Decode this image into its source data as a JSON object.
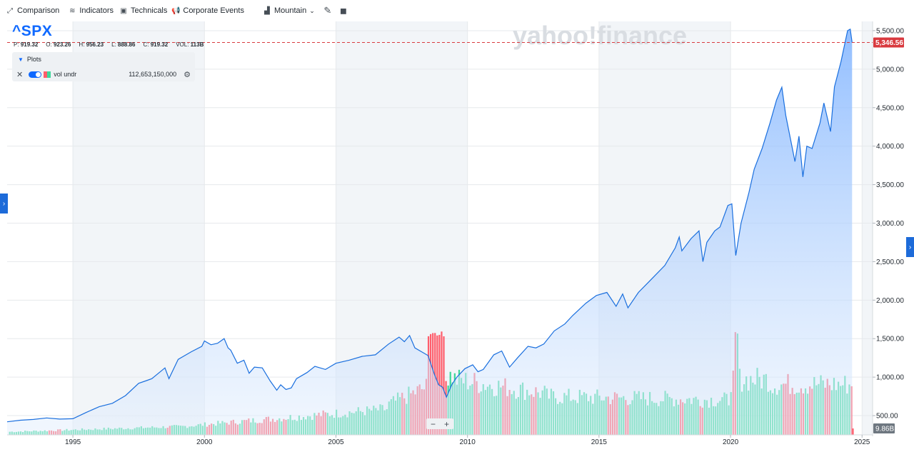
{
  "toolbar": {
    "comparison": "Comparison",
    "indicators": "Indicators",
    "technicals": "Technicals",
    "corporate_events": "Corporate Events",
    "chart_type": "Mountain"
  },
  "ticker": "^SPX",
  "ohlc": {
    "p_label": "P:",
    "p": "919.32",
    "o_label": "O:",
    "o": "923.26",
    "h_label": "H:",
    "h": "956.23",
    "l_label": "L:",
    "l": "888.86",
    "c_label": "C:",
    "c": "919.32",
    "vol_label": "VOL:",
    "vol": "113B"
  },
  "plots": {
    "header": "Plots",
    "item_label": "vol undr",
    "item_value": "112,653,150,000"
  },
  "watermark": "yahoo!finance",
  "colors": {
    "line": "#1a6fde",
    "volume_up": "#3dd89a",
    "volume_down": "#ff5d6b",
    "price_marker": "#d93a3f"
  },
  "chart_data": {
    "type": "area",
    "x_ticks": [
      "1995",
      "2000",
      "2005",
      "2010",
      "2015",
      "2020",
      "2025"
    ],
    "y_ticks": [
      "500.00",
      "1,000.00",
      "1,500.00",
      "2,000.00",
      "2,500.00",
      "3,000.00",
      "3,500.00",
      "4,000.00",
      "4,500.00",
      "5,000.00",
      "5,500.00"
    ],
    "ylim": [
      250,
      5620
    ],
    "xlim": [
      1992.5,
      2025.4
    ],
    "last_price": "5,346.56",
    "last_price_value": 5346.56,
    "volume_axis_label": "9.86B",
    "series": [
      {
        "points": [
          [
            1992.5,
            420
          ],
          [
            1993.0,
            440
          ],
          [
            1993.5,
            450
          ],
          [
            1994.0,
            470
          ],
          [
            1994.5,
            455
          ],
          [
            1995.0,
            460
          ],
          [
            1995.5,
            540
          ],
          [
            1996.0,
            615
          ],
          [
            1996.5,
            660
          ],
          [
            1997.0,
            760
          ],
          [
            1997.5,
            920
          ],
          [
            1997.8,
            955
          ],
          [
            1998.0,
            980
          ],
          [
            1998.5,
            1120
          ],
          [
            1998.65,
            980
          ],
          [
            1999.0,
            1230
          ],
          [
            1999.5,
            1330
          ],
          [
            1999.9,
            1400
          ],
          [
            2000.0,
            1470
          ],
          [
            2000.25,
            1420
          ],
          [
            2000.5,
            1440
          ],
          [
            2000.75,
            1500
          ],
          [
            2000.9,
            1380
          ],
          [
            2001.0,
            1350
          ],
          [
            2001.25,
            1180
          ],
          [
            2001.5,
            1220
          ],
          [
            2001.7,
            1050
          ],
          [
            2001.9,
            1130
          ],
          [
            2002.2,
            1120
          ],
          [
            2002.5,
            950
          ],
          [
            2002.75,
            830
          ],
          [
            2002.9,
            900
          ],
          [
            2003.1,
            840
          ],
          [
            2003.3,
            860
          ],
          [
            2003.5,
            980
          ],
          [
            2003.9,
            1060
          ],
          [
            2004.2,
            1140
          ],
          [
            2004.6,
            1100
          ],
          [
            2005.0,
            1180
          ],
          [
            2005.5,
            1220
          ],
          [
            2006.0,
            1270
          ],
          [
            2006.5,
            1290
          ],
          [
            2007.0,
            1430
          ],
          [
            2007.4,
            1520
          ],
          [
            2007.6,
            1460
          ],
          [
            2007.8,
            1540
          ],
          [
            2008.0,
            1380
          ],
          [
            2008.3,
            1320
          ],
          [
            2008.5,
            1280
          ],
          [
            2008.75,
            1030
          ],
          [
            2008.9,
            900
          ],
          [
            2009.05,
            870
          ],
          [
            2009.2,
            740
          ],
          [
            2009.4,
            900
          ],
          [
            2009.6,
            1000
          ],
          [
            2009.9,
            1110
          ],
          [
            2010.2,
            1160
          ],
          [
            2010.4,
            1070
          ],
          [
            2010.6,
            1100
          ],
          [
            2011.0,
            1290
          ],
          [
            2011.3,
            1340
          ],
          [
            2011.6,
            1130
          ],
          [
            2011.9,
            1250
          ],
          [
            2012.3,
            1400
          ],
          [
            2012.6,
            1380
          ],
          [
            2012.9,
            1430
          ],
          [
            2013.3,
            1600
          ],
          [
            2013.7,
            1690
          ],
          [
            2014.0,
            1800
          ],
          [
            2014.5,
            1960
          ],
          [
            2014.9,
            2060
          ],
          [
            2015.3,
            2100
          ],
          [
            2015.65,
            1920
          ],
          [
            2015.9,
            2080
          ],
          [
            2016.1,
            1900
          ],
          [
            2016.5,
            2100
          ],
          [
            2016.9,
            2240
          ],
          [
            2017.5,
            2450
          ],
          [
            2017.9,
            2680
          ],
          [
            2018.05,
            2820
          ],
          [
            2018.15,
            2640
          ],
          [
            2018.5,
            2800
          ],
          [
            2018.8,
            2900
          ],
          [
            2018.95,
            2500
          ],
          [
            2019.1,
            2750
          ],
          [
            2019.4,
            2900
          ],
          [
            2019.6,
            2950
          ],
          [
            2019.9,
            3230
          ],
          [
            2020.05,
            3250
          ],
          [
            2020.2,
            2580
          ],
          [
            2020.4,
            3000
          ],
          [
            2020.7,
            3400
          ],
          [
            2020.9,
            3700
          ],
          [
            2021.2,
            3970
          ],
          [
            2021.5,
            4300
          ],
          [
            2021.75,
            4600
          ],
          [
            2021.95,
            4766
          ],
          [
            2022.1,
            4400
          ],
          [
            2022.45,
            3800
          ],
          [
            2022.6,
            4130
          ],
          [
            2022.75,
            3600
          ],
          [
            2022.9,
            4000
          ],
          [
            2023.1,
            3970
          ],
          [
            2023.4,
            4300
          ],
          [
            2023.55,
            4560
          ],
          [
            2023.8,
            4190
          ],
          [
            2023.95,
            4770
          ],
          [
            2024.2,
            5100
          ],
          [
            2024.45,
            5500
          ],
          [
            2024.55,
            5520
          ],
          [
            2024.62,
            5346.56
          ]
        ]
      }
    ]
  }
}
